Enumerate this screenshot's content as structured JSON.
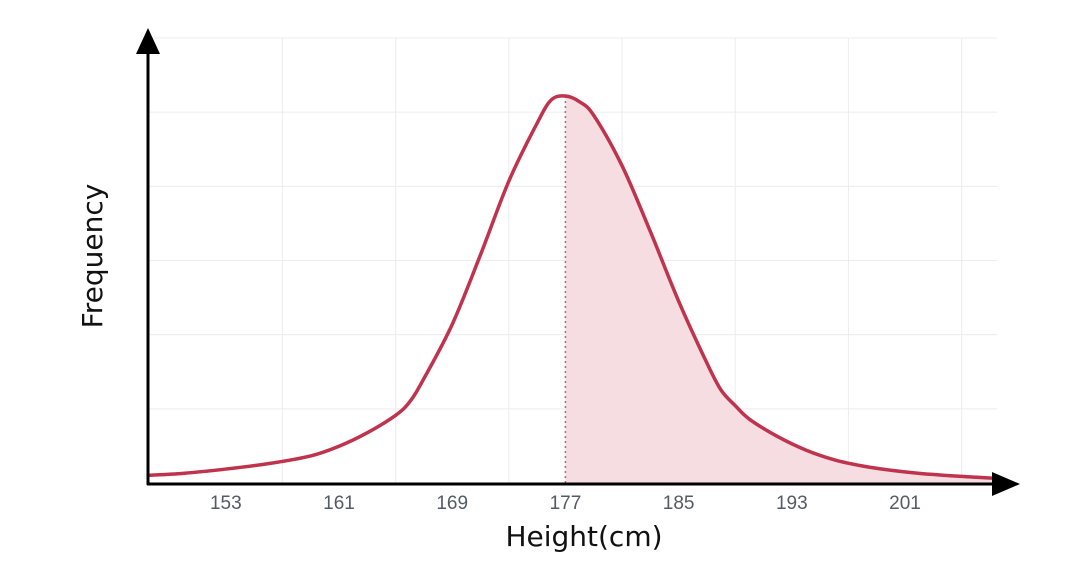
{
  "chart_data": {
    "type": "area",
    "title": "",
    "xlabel": "Height(cm)",
    "ylabel": "Frequency",
    "x_ticks": [
      153,
      161,
      169,
      177,
      185,
      193,
      201
    ],
    "xlim": [
      147.5,
      207.5
    ],
    "ylim": [
      0,
      1.15
    ],
    "grid": true,
    "series": [
      {
        "x": [
          147.5,
          150,
          153,
          156,
          159,
          161,
          163,
          165,
          166,
          167,
          169,
          171,
          173,
          175,
          176,
          177,
          178,
          179,
          181,
          183,
          185,
          187,
          188,
          189,
          190,
          192,
          194,
          196,
          198,
          200,
          202,
          205,
          207.5
        ],
        "y": [
          0.02,
          0.025,
          0.036,
          0.05,
          0.07,
          0.095,
          0.13,
          0.175,
          0.21,
          0.27,
          0.41,
          0.59,
          0.78,
          0.93,
          0.99,
          1.0,
          0.985,
          0.95,
          0.82,
          0.65,
          0.47,
          0.31,
          0.24,
          0.2,
          0.165,
          0.12,
          0.085,
          0.06,
          0.044,
          0.033,
          0.025,
          0.017,
          0.012
        ],
        "color": "#c0334d"
      }
    ],
    "mean_line_x": 177,
    "shaded_region": [
      177,
      207.5
    ],
    "shade_color": "#f5dde2"
  }
}
